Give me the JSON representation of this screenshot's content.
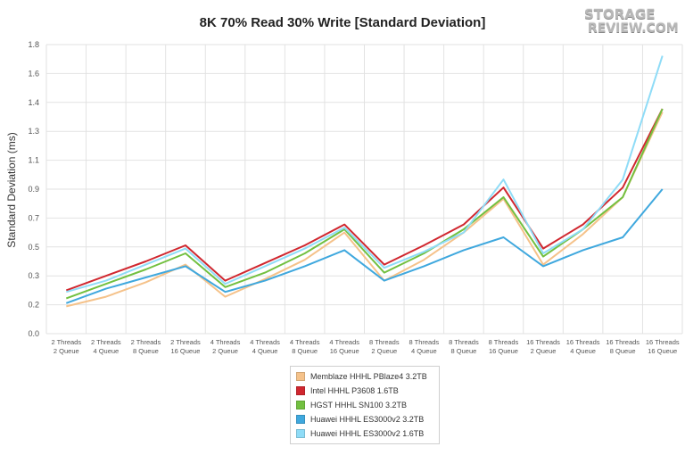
{
  "chart_data": {
    "type": "line",
    "title": "8K 70% Read 30% Write [Standard Deviation]",
    "ylabel": "Standard Deviation (ms)",
    "xlabel": "",
    "ylim": [
      0,
      1.8
    ],
    "yticks": [
      "0.0",
      "0.2",
      "0.3",
      "0.5",
      "0.7",
      "0.9",
      "1.1",
      "1.3",
      "1.4",
      "1.6",
      "1.8"
    ],
    "categories": [
      [
        "2 Threads",
        "2 Queue"
      ],
      [
        "2 Threads",
        "4 Queue"
      ],
      [
        "2 Threads",
        "8 Queue"
      ],
      [
        "2 Threads",
        "16 Queue"
      ],
      [
        "4 Threads",
        "2 Queue"
      ],
      [
        "4 Threads",
        "4 Queue"
      ],
      [
        "4 Threads",
        "8 Queue"
      ],
      [
        "4 Threads",
        "16 Queue"
      ],
      [
        "8 Threads",
        "2 Queue"
      ],
      [
        "8 Threads",
        "4 Queue"
      ],
      [
        "8 Threads",
        "8 Queue"
      ],
      [
        "8 Threads",
        "16 Queue"
      ],
      [
        "16 Threads",
        "2 Queue"
      ],
      [
        "16 Threads",
        "4 Queue"
      ],
      [
        "16 Threads",
        "8 Queue"
      ],
      [
        "16 Threads",
        "16 Queue"
      ]
    ],
    "grid": true,
    "legend_position": "bottom",
    "series": [
      {
        "name": "Memblaze HHHL PBlaze4 3.2TB",
        "color": "#f5c28a",
        "values": [
          0.17,
          0.23,
          0.32,
          0.43,
          0.23,
          0.34,
          0.46,
          0.63,
          0.33,
          0.46,
          0.63,
          0.84,
          0.43,
          0.62,
          0.85,
          1.38
        ]
      },
      {
        "name": "Intel HHHL P3608 1.6TB",
        "color": "#d0272f",
        "values": [
          0.27,
          0.36,
          0.45,
          0.55,
          0.33,
          0.44,
          0.55,
          0.68,
          0.43,
          0.55,
          0.68,
          0.91,
          0.53,
          0.68,
          0.91,
          1.4
        ]
      },
      {
        "name": "HGST HHHL SN100 3.2TB",
        "color": "#72c040",
        "values": [
          0.22,
          0.31,
          0.4,
          0.5,
          0.29,
          0.38,
          0.5,
          0.65,
          0.38,
          0.5,
          0.65,
          0.85,
          0.48,
          0.65,
          0.85,
          1.4
        ]
      },
      {
        "name": "Huawei HHHL ES3000v2 3.2TB",
        "color": "#3fa8de",
        "values": [
          0.19,
          0.28,
          0.35,
          0.42,
          0.26,
          0.33,
          0.42,
          0.52,
          0.33,
          0.42,
          0.52,
          0.6,
          0.42,
          0.52,
          0.6,
          0.9
        ]
      },
      {
        "name": "Huawei HHHL ES3000v2 1.6TB",
        "color": "#8fdcf7",
        "values": [
          0.26,
          0.33,
          0.43,
          0.53,
          0.31,
          0.42,
          0.53,
          0.66,
          0.41,
          0.51,
          0.63,
          0.96,
          0.5,
          0.65,
          0.96,
          1.73
        ]
      }
    ]
  },
  "logo": {
    "line1": "STORAGE",
    "line2": "REVIEW.COM"
  }
}
